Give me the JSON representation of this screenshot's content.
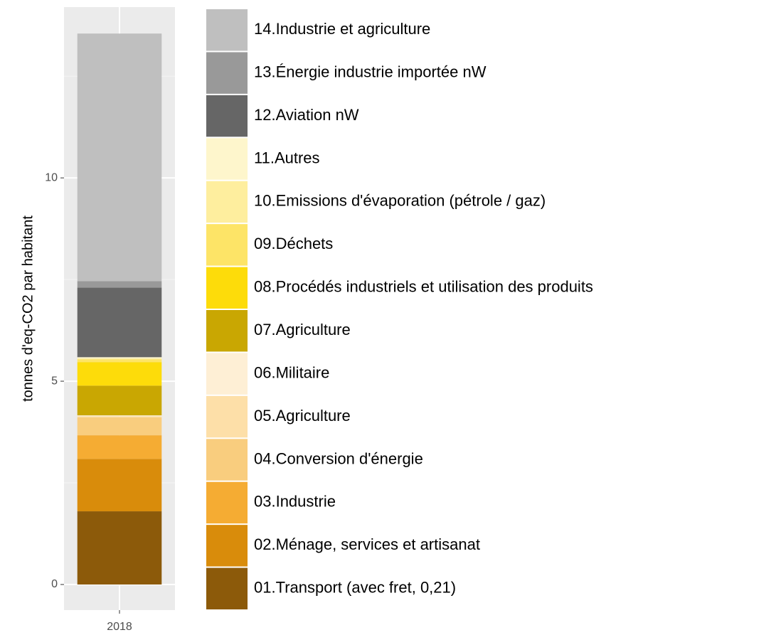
{
  "chart_data": {
    "type": "stacked_bar",
    "y_label": "tonnes d'eq-CO2 par habitant",
    "categories": [
      "2018"
    ],
    "ylim": [
      -0.63,
      14.2
    ],
    "yticks": [
      0,
      5,
      10
    ],
    "grid": true,
    "legend": "right",
    "series": [
      {
        "name": "01.Transport (avec fret, 0,21)",
        "color": "#8c5a0a",
        "values": [
          1.8
        ]
      },
      {
        "name": "02.Ménage, services et artisanat",
        "color": "#d98c0b",
        "values": [
          1.29
        ]
      },
      {
        "name": "03.Industrie",
        "color": "#f5ac33",
        "values": [
          0.58
        ]
      },
      {
        "name": "04.Conversion d'énergie",
        "color": "#f9cd7e",
        "values": [
          0.44
        ]
      },
      {
        "name": "05.Agriculture",
        "color": "#fddfa8",
        "values": [
          0.03
        ]
      },
      {
        "name": "06.Militaire",
        "color": "#feefd5",
        "values": [
          0.02
        ]
      },
      {
        "name": "07.Agriculture",
        "color": "#c9a702",
        "values": [
          0.73
        ]
      },
      {
        "name": "08.Procédés industriels et utilisation des produits",
        "color": "#fddc0a",
        "values": [
          0.58
        ]
      },
      {
        "name": "09.Déchets",
        "color": "#fde467",
        "values": [
          0.07
        ]
      },
      {
        "name": "10.Emissions d'évaporation (pétrole / gaz)",
        "color": "#feee9e",
        "values": [
          0.02
        ]
      },
      {
        "name": "11.Autres",
        "color": "#fef6cc",
        "values": [
          0.03
        ]
      },
      {
        "name": "12.Aviation nW",
        "color": "#666666",
        "values": [
          1.71
        ]
      },
      {
        "name": "13.Énergie industrie importée nW",
        "color": "#999999",
        "values": [
          0.16
        ]
      },
      {
        "name": "14.Industrie et agriculture",
        "color": "#bfbfbf",
        "values": [
          6.09
        ]
      }
    ]
  }
}
